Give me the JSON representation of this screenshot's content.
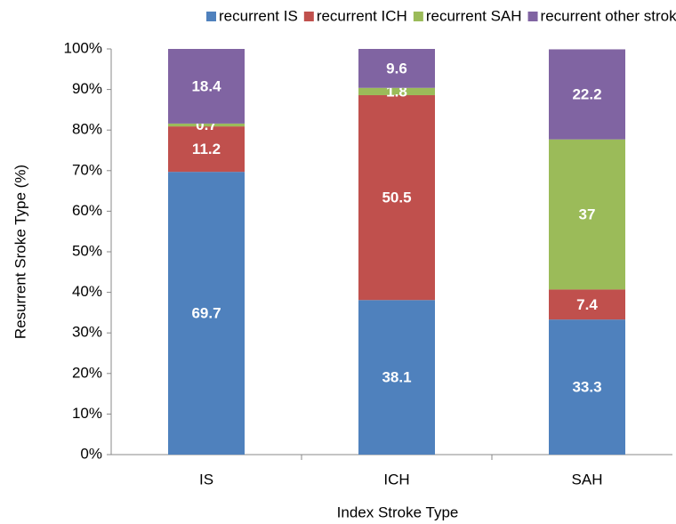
{
  "chart_data": {
    "type": "stacked_bar",
    "x_label": "Index Stroke Type",
    "y_label": "Resurrent Sroke Type (%)",
    "categories": [
      "IS",
      "ICH",
      "SAH"
    ],
    "series": [
      {
        "name": "recurrent IS",
        "color": "#4f81bd",
        "values": [
          69.7,
          38.1,
          33.3
        ]
      },
      {
        "name": "recurrent ICH",
        "color": "#c0504d",
        "values": [
          11.2,
          50.5,
          7.4
        ]
      },
      {
        "name": "recurrent SAH",
        "color": "#9bbb59",
        "values": [
          0.7,
          1.8,
          37
        ]
      },
      {
        "name": "recurrent other strokes",
        "color": "#8064a2",
        "values": [
          18.4,
          9.6,
          22.2
        ]
      }
    ],
    "ylim": [
      0,
      100
    ],
    "yticks": [
      {
        "value": 0,
        "label": "0%"
      },
      {
        "value": 10,
        "label": "10%"
      },
      {
        "value": 20,
        "label": "20%"
      },
      {
        "value": 30,
        "label": "30%"
      },
      {
        "value": 40,
        "label": "40%"
      },
      {
        "value": 50,
        "label": "50%"
      },
      {
        "value": 60,
        "label": "60%"
      },
      {
        "value": 70,
        "label": "70%"
      },
      {
        "value": 80,
        "label": "80%"
      },
      {
        "value": 90,
        "label": "90%"
      },
      {
        "value": 100,
        "label": "100%"
      }
    ],
    "legend": "top"
  }
}
